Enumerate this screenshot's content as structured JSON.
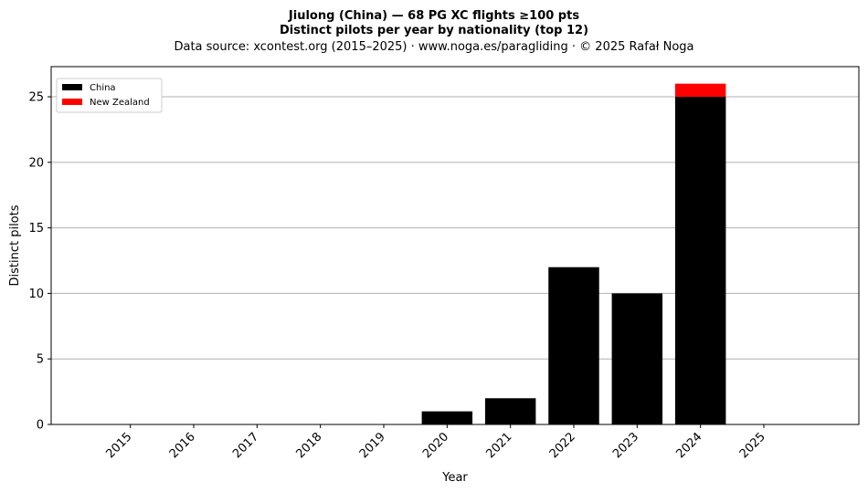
{
  "chart_data": {
    "type": "bar",
    "stacked": true,
    "title": "Jiulong (China)  —  68 PG XC flights ≥100 pts",
    "subtitle": "Distinct pilots per year by nationality (top 12)",
    "source": "Data source: xcontest.org (2015–2025)  ·  www.noga.es/paragliding  ·  © 2025 Rafał Noga",
    "xlabel": "Year",
    "ylabel": "Distinct pilots",
    "categories": [
      "2015",
      "2016",
      "2017",
      "2018",
      "2019",
      "2020",
      "2021",
      "2022",
      "2023",
      "2024",
      "2025"
    ],
    "series": [
      {
        "name": "China",
        "color": "#000000",
        "values": [
          0,
          0,
          0,
          0,
          0,
          1,
          2,
          12,
          10,
          25,
          0
        ]
      },
      {
        "name": "New Zealand",
        "color": "#ff0000",
        "values": [
          0,
          0,
          0,
          0,
          0,
          0,
          0,
          0,
          0,
          1,
          0
        ]
      }
    ],
    "ylim": [
      0,
      27.3
    ],
    "yticks": [
      0,
      5,
      10,
      15,
      20,
      25
    ],
    "grid": "y",
    "legend_position": "top-left"
  }
}
